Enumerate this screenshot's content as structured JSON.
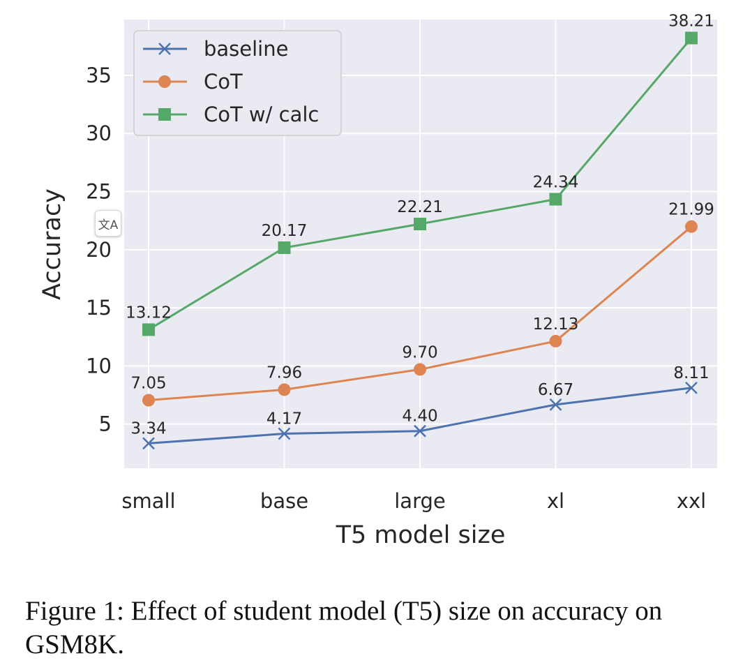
{
  "chart_data": {
    "type": "line",
    "xlabel": "T5 model size",
    "ylabel": "Accuracy",
    "categories": [
      "small",
      "base",
      "large",
      "xl",
      "xxl"
    ],
    "yticks": [
      5,
      10,
      15,
      20,
      25,
      30,
      35
    ],
    "ylim": [
      1.2,
      39.8
    ],
    "grid": true,
    "legend_position": "top-left",
    "series": [
      {
        "name": "baseline",
        "marker": "x",
        "color": "#4c72b0",
        "values": [
          3.34,
          4.17,
          4.4,
          6.67,
          8.11
        ]
      },
      {
        "name": "CoT",
        "marker": "circle",
        "color": "#dd8452",
        "values": [
          7.05,
          7.96,
          9.7,
          12.13,
          21.99
        ]
      },
      {
        "name": "CoT w/ calc",
        "marker": "square",
        "color": "#55a868",
        "values": [
          13.12,
          20.17,
          22.21,
          24.34,
          38.21
        ]
      }
    ],
    "point_labels": [
      [
        "3.34",
        "4.17",
        "4.40",
        "6.67",
        "8.11"
      ],
      [
        "7.05",
        "7.96",
        "9.70",
        "12.13",
        "21.99"
      ],
      [
        "13.12",
        "20.17",
        "22.21",
        "24.34",
        "38.21"
      ]
    ]
  },
  "caption": "Figure 1: Effect of student model (T5) size on accuracy on GSM8K.",
  "translate_glyph": "文A"
}
